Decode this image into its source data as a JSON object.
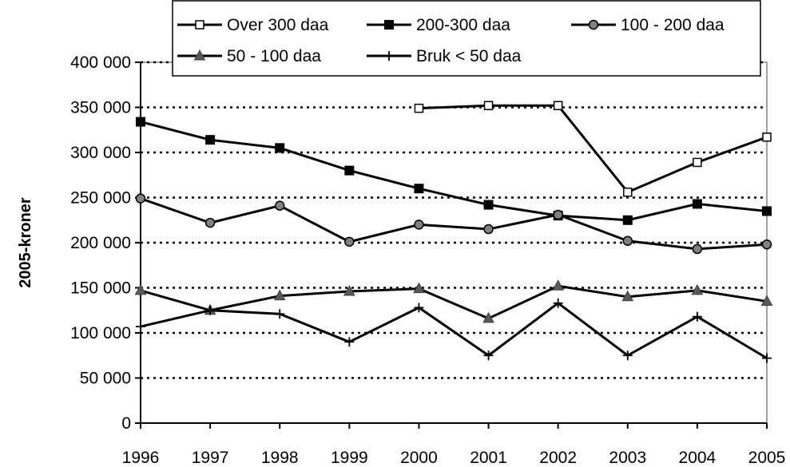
{
  "chart_data": {
    "type": "line",
    "title": "",
    "xlabel": "",
    "ylabel": "2005-kroner",
    "ylim": [
      0,
      400000
    ],
    "yticks": [
      0,
      50000,
      100000,
      150000,
      200000,
      250000,
      300000,
      350000,
      400000
    ],
    "ytick_labels": [
      "0",
      "50 000",
      "100 000",
      "150 000",
      "200 000",
      "250 000",
      "300 000",
      "350 000",
      "400 000"
    ],
    "categories": [
      "1996",
      "1997",
      "1998",
      "1999",
      "2000",
      "2001",
      "2002",
      "2003",
      "2004",
      "2005"
    ],
    "grid": "horizontal dotted",
    "legend_position": "top",
    "series": [
      {
        "name": "Over 300 daa",
        "marker": "square-open",
        "values": [
          null,
          null,
          null,
          null,
          349000,
          352000,
          352000,
          256000,
          289000,
          317000
        ]
      },
      {
        "name": "200-300 daa",
        "marker": "square-filled",
        "values": [
          334000,
          314000,
          305000,
          280000,
          260000,
          242000,
          230000,
          225000,
          243000,
          235000
        ]
      },
      {
        "name": "100 - 200 daa",
        "marker": "circle",
        "values": [
          249000,
          222000,
          241000,
          201000,
          220000,
          215000,
          231000,
          202000,
          193000,
          198000
        ]
      },
      {
        "name": "50 - 100 daa",
        "marker": "triangle",
        "values": [
          147000,
          125000,
          141000,
          146000,
          149000,
          116000,
          152000,
          140000,
          147000,
          135000
        ]
      },
      {
        "name": "Bruk < 50 daa",
        "marker": "plus",
        "values": [
          107000,
          125000,
          121000,
          90000,
          128000,
          75000,
          133000,
          75000,
          118000,
          72000
        ]
      }
    ]
  }
}
